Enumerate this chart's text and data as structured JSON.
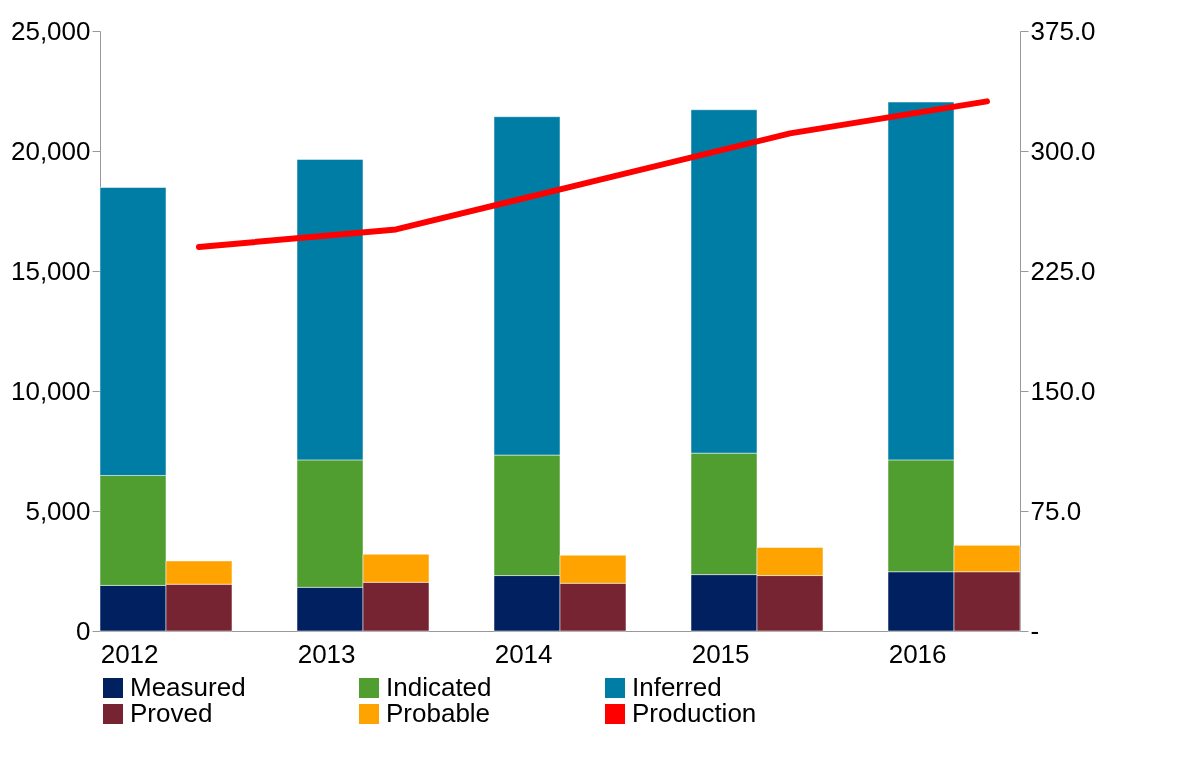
{
  "chart_data": {
    "type": "bar",
    "stacked": true,
    "categories": [
      "2012",
      null,
      "2013",
      null,
      "2014",
      null,
      "2015",
      null,
      "2016",
      null
    ],
    "series": [
      {
        "name": "Measured",
        "color": "#002060",
        "values": [
          1900,
          null,
          1820,
          null,
          2310,
          null,
          2350,
          null,
          2470,
          null
        ]
      },
      {
        "name": "Indicated",
        "color": "#509e2f",
        "values": [
          4580,
          null,
          5310,
          null,
          5020,
          null,
          5060,
          null,
          4660,
          null
        ]
      },
      {
        "name": "Inferred",
        "color": "#007da5",
        "values": [
          12000,
          null,
          12520,
          null,
          14100,
          null,
          14310,
          null,
          14910,
          null
        ]
      },
      {
        "name": "Proved",
        "color": "#772432",
        "values": [
          null,
          1950,
          null,
          2030,
          null,
          1990,
          null,
          2310,
          null,
          2470
        ]
      },
      {
        "name": "Probable",
        "color": "#ffa300",
        "values": [
          null,
          970,
          null,
          1170,
          null,
          1170,
          null,
          1170,
          null,
          1100
        ]
      },
      {
        "name": "Production",
        "color": "#ff0000",
        "type": "line",
        "axis": "y2",
        "values": [
          null,
          240,
          null,
          251,
          null,
          281,
          null,
          311,
          null,
          331
        ]
      }
    ],
    "ylim": [
      0,
      25000
    ],
    "yticks": [
      {
        "value": 0,
        "label": "0"
      },
      {
        "value": 5000,
        "label": "5,000"
      },
      {
        "value": 10000,
        "label": "10,000"
      },
      {
        "value": 15000,
        "label": "15,000"
      },
      {
        "value": 20000,
        "label": "20,000"
      },
      {
        "value": 25000,
        "label": "25,000"
      }
    ],
    "y2lim": [
      0,
      375
    ],
    "y2ticks": [
      {
        "value": 0,
        "label": "-"
      },
      {
        "value": 75,
        "label": "75.0"
      },
      {
        "value": 150,
        "label": "150.0"
      },
      {
        "value": 225,
        "label": "225.0"
      },
      {
        "value": 300,
        "label": "300.0"
      },
      {
        "value": 375,
        "label": "375.0"
      }
    ],
    "grid": false,
    "legend": "bottom",
    "line_style": "solid",
    "marker": "none"
  }
}
